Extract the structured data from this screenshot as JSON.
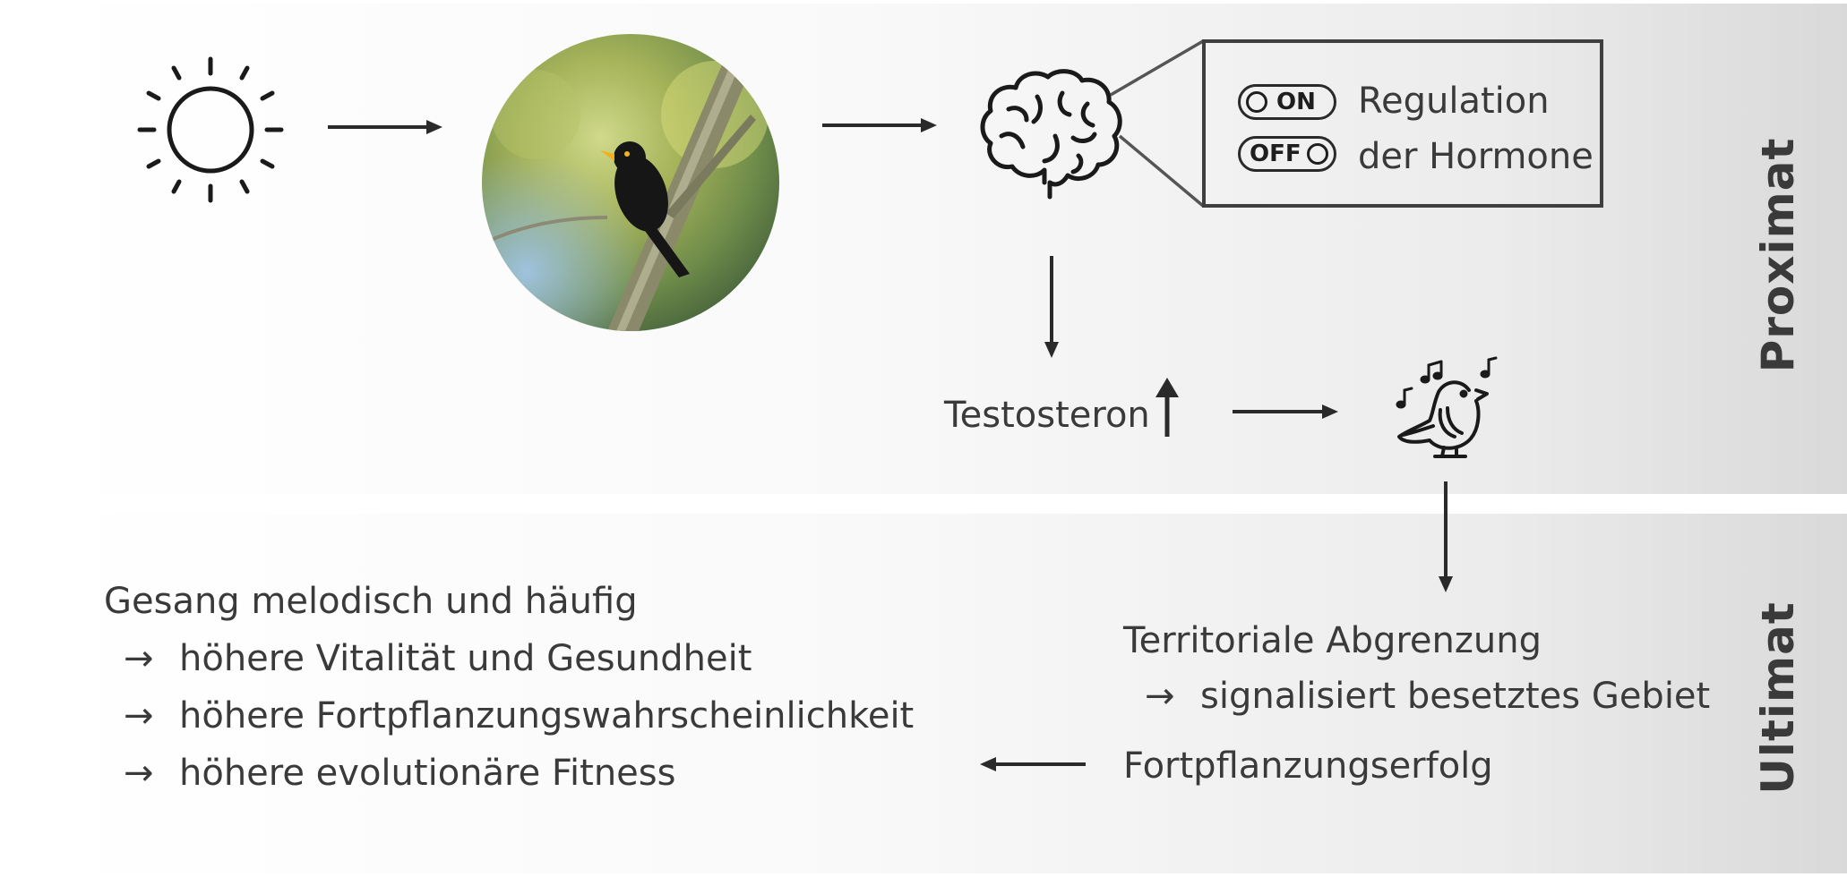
{
  "sections": {
    "proximat": "Proximat",
    "ultimat": "Ultimat"
  },
  "regulation": {
    "switch_on": "ON",
    "switch_off": "OFF",
    "line1": "Regulation",
    "line2": "der Hormone"
  },
  "testosterone": {
    "label": "Testosteron"
  },
  "ultimate_right": {
    "line1": "Territoriale Abgrenzung",
    "line2": "signalisiert besetztes Gebiet",
    "line3": "Fortpflanzungserfolg"
  },
  "ultimate_left": {
    "heading": "Gesang melodisch und häufig",
    "items": [
      "höhere Vitalität und Gesundheit",
      "höhere Fortpflanzungswahrscheinlichkeit",
      "höhere evolutionäre Fitness"
    ]
  },
  "glyphs": {
    "arrow_right": "→"
  },
  "icons": [
    "sun-icon",
    "brain-icon",
    "singing-bird-icon",
    "music-notes-icon"
  ],
  "colors": {
    "text": "#3a3a3a",
    "stroke": "#2a2a2a",
    "band_end": "#d9d9d9"
  }
}
